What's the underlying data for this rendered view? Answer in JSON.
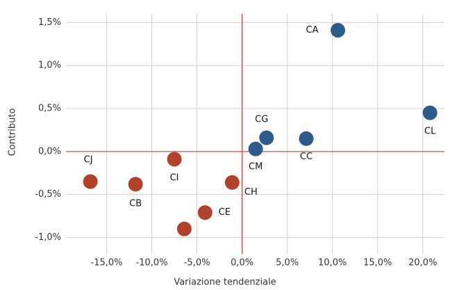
{
  "chart_data": {
    "type": "scatter",
    "xlabel": "Variazione tendenziale",
    "ylabel": "Contributo",
    "x": [
      10.6,
      20.8,
      2.7,
      7.1,
      1.5,
      -7.5,
      -16.8,
      -11.8,
      -1.1,
      -4.1,
      -6.4
    ],
    "values": [
      1.41,
      0.45,
      0.16,
      0.15,
      0.03,
      -0.09,
      -0.35,
      -0.38,
      -0.36,
      -0.71,
      -0.9
    ],
    "labels": [
      "CA",
      "CL",
      "CG",
      "CC",
      "CM",
      "CI",
      "CJ",
      "CB",
      "CH",
      "CE",
      null
    ],
    "colors": [
      "#2d5b8a",
      "#2d5b8a",
      "#2d5b8a",
      "#2d5b8a",
      "#2d5b8a",
      "#b2432a",
      "#b2432a",
      "#b2432a",
      "#b2432a",
      "#b2432a",
      "#b2432a"
    ],
    "xlim": [
      -19.5,
      22.4
    ],
    "ylim": [
      -1.19,
      1.6
    ],
    "xticks": [
      {
        "value": -15,
        "label": "-15,0%"
      },
      {
        "value": -10,
        "label": "-10,0%"
      },
      {
        "value": -5,
        "label": "-5,0%"
      },
      {
        "value": 0,
        "label": "0,0%"
      },
      {
        "value": 5,
        "label": "5,0%"
      },
      {
        "value": 10,
        "label": "10,0%"
      },
      {
        "value": 15,
        "label": "15,0%"
      },
      {
        "value": 20,
        "label": "20,0%"
      }
    ],
    "yticks": [
      {
        "value": -1,
        "label": "-1,0%"
      },
      {
        "value": -0.5,
        "label": "-0,5%"
      },
      {
        "value": 0,
        "label": "0,0%"
      },
      {
        "value": 0.5,
        "label": "0,5%"
      },
      {
        "value": 1,
        "label": "1,0%"
      },
      {
        "value": 1.5,
        "label": "1,5%"
      }
    ],
    "grid": true,
    "zero_line_color": "#d0201a"
  }
}
